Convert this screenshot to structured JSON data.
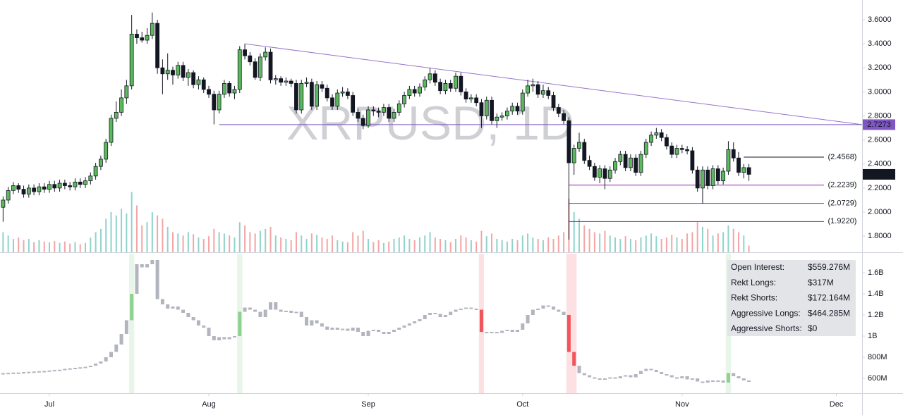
{
  "chart_data": [
    {
      "type": "candlestick",
      "watermark": "XRPUSD, 1D",
      "xlim": [
        -0.6,
        167
      ],
      "ylim": [
        1.666,
        3.764
      ],
      "xticks": [
        {
          "value": 9,
          "label": "Jul"
        },
        {
          "value": 40,
          "label": "Aug"
        },
        {
          "value": 71,
          "label": "Sep"
        },
        {
          "value": 101,
          "label": "Oct"
        },
        {
          "value": 132,
          "label": "Nov"
        },
        {
          "value": 162,
          "label": "Dec"
        }
      ],
      "yticks": [
        {
          "value": 1.8,
          "label": "1.8000"
        },
        {
          "value": 2.0,
          "label": "2.0000"
        },
        {
          "value": 2.2,
          "label": "2.2000"
        },
        {
          "value": 2.4,
          "label": "2.4000"
        },
        {
          "value": 2.6,
          "label": "2.6000"
        },
        {
          "value": 2.8,
          "label": "2.8000"
        },
        {
          "value": 3.0,
          "label": "3.0000"
        },
        {
          "value": 3.2,
          "label": "3.2000"
        },
        {
          "value": 3.4,
          "label": "3.4000"
        },
        {
          "value": 3.6,
          "label": "3.6000"
        }
      ],
      "up_color": "#5cb85c",
      "down_color": "#131722",
      "wick_color": "#131722",
      "volume_up_color": "#8fd3cc",
      "volume_down_color": "#f4a5a5",
      "ohlc": [
        [
          2.04,
          2.13,
          1.92,
          2.1
        ],
        [
          2.1,
          2.21,
          2.07,
          2.18
        ],
        [
          2.18,
          2.25,
          2.15,
          2.22
        ],
        [
          2.22,
          2.24,
          2.16,
          2.19
        ],
        [
          2.19,
          2.22,
          2.12,
          2.15
        ],
        [
          2.15,
          2.23,
          2.12,
          2.2
        ],
        [
          2.2,
          2.23,
          2.14,
          2.17
        ],
        [
          2.17,
          2.24,
          2.14,
          2.21
        ],
        [
          2.21,
          2.24,
          2.16,
          2.19
        ],
        [
          2.19,
          2.26,
          2.16,
          2.23
        ],
        [
          2.23,
          2.26,
          2.17,
          2.2
        ],
        [
          2.2,
          2.27,
          2.17,
          2.24
        ],
        [
          2.24,
          2.27,
          2.19,
          2.22
        ],
        [
          2.22,
          2.25,
          2.18,
          2.21
        ],
        [
          2.21,
          2.28,
          2.18,
          2.25
        ],
        [
          2.25,
          2.28,
          2.2,
          2.23
        ],
        [
          2.23,
          2.29,
          2.2,
          2.26
        ],
        [
          2.26,
          2.33,
          2.23,
          2.3
        ],
        [
          2.3,
          2.41,
          2.27,
          2.38
        ],
        [
          2.38,
          2.47,
          2.35,
          2.44
        ],
        [
          2.44,
          2.61,
          2.41,
          2.58
        ],
        [
          2.58,
          2.81,
          2.55,
          2.78
        ],
        [
          2.78,
          2.92,
          2.75,
          2.83
        ],
        [
          2.83,
          3.02,
          2.8,
          2.95
        ],
        [
          2.95,
          3.1,
          2.9,
          3.05
        ],
        [
          3.05,
          3.64,
          3.02,
          3.48
        ],
        [
          3.48,
          3.52,
          3.4,
          3.45
        ],
        [
          3.45,
          3.5,
          3.41,
          3.43
        ],
        [
          3.43,
          3.53,
          3.4,
          3.47
        ],
        [
          3.47,
          3.66,
          3.44,
          3.57
        ],
        [
          3.57,
          3.6,
          3.15,
          3.2
        ],
        [
          3.2,
          3.27,
          2.98,
          3.15
        ],
        [
          3.15,
          3.32,
          3.1,
          3.18
        ],
        [
          3.18,
          3.21,
          3.06,
          3.14
        ],
        [
          3.14,
          3.25,
          3.11,
          3.22
        ],
        [
          3.22,
          3.25,
          3.09,
          3.12
        ],
        [
          3.12,
          3.19,
          3.05,
          3.16
        ],
        [
          3.16,
          3.18,
          3.03,
          3.06
        ],
        [
          3.06,
          3.13,
          3.02,
          3.1
        ],
        [
          3.1,
          3.12,
          2.99,
          3.02
        ],
        [
          3.02,
          3.05,
          2.95,
          2.98
        ],
        [
          2.98,
          3.01,
          2.73,
          2.85
        ],
        [
          2.85,
          3.01,
          2.82,
          2.98
        ],
        [
          2.98,
          3.1,
          2.95,
          3.07
        ],
        [
          3.07,
          3.09,
          2.96,
          2.99
        ],
        [
          2.99,
          3.05,
          2.94,
          3.02
        ],
        [
          3.02,
          3.38,
          2.99,
          3.35
        ],
        [
          3.35,
          3.4,
          3.27,
          3.3
        ],
        [
          3.3,
          3.33,
          3.22,
          3.25
        ],
        [
          3.25,
          3.28,
          3.1,
          3.12
        ],
        [
          3.12,
          3.32,
          3.09,
          3.29
        ],
        [
          3.29,
          3.37,
          3.26,
          3.33
        ],
        [
          3.33,
          3.36,
          3.07,
          3.1
        ],
        [
          3.1,
          3.14,
          3.06,
          3.11
        ],
        [
          3.11,
          3.13,
          3.05,
          3.08
        ],
        [
          3.08,
          3.12,
          3.05,
          3.09
        ],
        [
          3.09,
          3.11,
          3.04,
          3.07
        ],
        [
          3.07,
          3.1,
          2.82,
          2.85
        ],
        [
          2.85,
          3.1,
          2.82,
          3.07
        ],
        [
          3.07,
          3.12,
          3.04,
          3.08
        ],
        [
          3.08,
          3.11,
          2.85,
          2.88
        ],
        [
          2.88,
          3.09,
          2.85,
          3.06
        ],
        [
          3.06,
          3.09,
          3.0,
          3.03
        ],
        [
          3.03,
          3.06,
          2.92,
          2.95
        ],
        [
          2.95,
          2.98,
          2.85,
          2.88
        ],
        [
          2.88,
          3.02,
          2.85,
          2.99
        ],
        [
          2.99,
          3.04,
          2.96,
          3.0
        ],
        [
          3.0,
          3.03,
          2.94,
          2.97
        ],
        [
          2.97,
          3.0,
          2.8,
          2.83
        ],
        [
          2.83,
          2.86,
          2.75,
          2.78
        ],
        [
          2.78,
          2.81,
          2.69,
          2.72
        ],
        [
          2.72,
          2.88,
          2.7,
          2.85
        ],
        [
          2.85,
          2.88,
          2.8,
          2.84
        ],
        [
          2.84,
          2.87,
          2.79,
          2.83
        ],
        [
          2.83,
          2.9,
          2.8,
          2.87
        ],
        [
          2.87,
          2.9,
          2.75,
          2.78
        ],
        [
          2.78,
          2.86,
          2.75,
          2.83
        ],
        [
          2.83,
          2.93,
          2.8,
          2.9
        ],
        [
          2.9,
          3.0,
          2.87,
          2.97
        ],
        [
          2.97,
          3.05,
          2.94,
          3.02
        ],
        [
          3.02,
          3.05,
          2.96,
          2.99
        ],
        [
          2.99,
          3.07,
          2.96,
          3.04
        ],
        [
          3.04,
          3.13,
          3.01,
          3.1
        ],
        [
          3.1,
          3.2,
          3.07,
          3.15
        ],
        [
          3.15,
          3.18,
          3.05,
          3.08
        ],
        [
          3.08,
          3.11,
          2.98,
          3.01
        ],
        [
          3.01,
          3.1,
          2.98,
          3.07
        ],
        [
          3.07,
          3.1,
          3.0,
          3.03
        ],
        [
          3.03,
          3.16,
          3.0,
          3.13
        ],
        [
          3.13,
          3.16,
          2.97,
          3.0
        ],
        [
          3.0,
          3.03,
          2.91,
          2.94
        ],
        [
          2.94,
          2.98,
          2.91,
          2.95
        ],
        [
          2.95,
          2.98,
          2.88,
          2.91
        ],
        [
          2.91,
          2.94,
          2.7,
          2.8
        ],
        [
          2.8,
          2.96,
          2.77,
          2.93
        ],
        [
          2.93,
          2.96,
          2.73,
          2.76
        ],
        [
          2.76,
          2.82,
          2.7,
          2.79
        ],
        [
          2.79,
          2.83,
          2.76,
          2.8
        ],
        [
          2.8,
          2.87,
          2.77,
          2.84
        ],
        [
          2.84,
          2.91,
          2.81,
          2.88
        ],
        [
          2.88,
          2.91,
          2.81,
          2.84
        ],
        [
          2.84,
          3.02,
          2.81,
          2.99
        ],
        [
          2.99,
          3.1,
          2.96,
          3.05
        ],
        [
          3.05,
          3.11,
          3.0,
          3.06
        ],
        [
          3.06,
          3.09,
          2.95,
          2.98
        ],
        [
          2.98,
          3.06,
          2.95,
          3.01
        ],
        [
          3.01,
          3.04,
          2.94,
          2.97
        ],
        [
          2.97,
          3.0,
          2.84,
          2.87
        ],
        [
          2.87,
          2.9,
          2.79,
          2.82
        ],
        [
          2.82,
          2.85,
          2.73,
          2.76
        ],
        [
          2.76,
          2.79,
          1.77,
          2.41
        ],
        [
          2.41,
          2.56,
          2.31,
          2.53
        ],
        [
          2.53,
          2.66,
          2.5,
          2.58
        ],
        [
          2.58,
          2.61,
          2.4,
          2.43
        ],
        [
          2.43,
          2.47,
          2.35,
          2.38
        ],
        [
          2.38,
          2.41,
          2.26,
          2.29
        ],
        [
          2.29,
          2.39,
          2.24,
          2.36
        ],
        [
          2.36,
          2.39,
          2.19,
          2.28
        ],
        [
          2.28,
          2.38,
          2.25,
          2.35
        ],
        [
          2.35,
          2.45,
          2.32,
          2.42
        ],
        [
          2.42,
          2.51,
          2.39,
          2.48
        ],
        [
          2.48,
          2.51,
          2.34,
          2.37
        ],
        [
          2.37,
          2.48,
          2.34,
          2.45
        ],
        [
          2.45,
          2.48,
          2.3,
          2.33
        ],
        [
          2.33,
          2.51,
          2.3,
          2.48
        ],
        [
          2.48,
          2.61,
          2.45,
          2.58
        ],
        [
          2.58,
          2.67,
          2.55,
          2.64
        ],
        [
          2.64,
          2.7,
          2.61,
          2.66
        ],
        [
          2.66,
          2.69,
          2.59,
          2.62
        ],
        [
          2.62,
          2.65,
          2.52,
          2.55
        ],
        [
          2.55,
          2.58,
          2.45,
          2.48
        ],
        [
          2.48,
          2.56,
          2.45,
          2.53
        ],
        [
          2.53,
          2.56,
          2.49,
          2.52
        ],
        [
          2.52,
          2.55,
          2.48,
          2.51
        ],
        [
          2.51,
          2.54,
          2.32,
          2.35
        ],
        [
          2.35,
          2.38,
          2.17,
          2.2
        ],
        [
          2.2,
          2.38,
          2.07,
          2.35
        ],
        [
          2.35,
          2.38,
          2.19,
          2.22
        ],
        [
          2.22,
          2.39,
          2.19,
          2.36
        ],
        [
          2.36,
          2.39,
          2.23,
          2.26
        ],
        [
          2.26,
          2.37,
          2.23,
          2.34
        ],
        [
          2.34,
          2.59,
          2.31,
          2.52
        ],
        [
          2.52,
          2.58,
          2.42,
          2.45
        ],
        [
          2.45,
          2.5,
          2.3,
          2.33
        ],
        [
          2.33,
          2.4,
          2.28,
          2.37
        ],
        [
          2.37,
          2.4,
          2.26,
          2.3139
        ]
      ],
      "volume": [
        30,
        25,
        20,
        22,
        18,
        20,
        15,
        18,
        16,
        15,
        17,
        14,
        16,
        13,
        15,
        12,
        14,
        22,
        30,
        35,
        50,
        60,
        55,
        65,
        58,
        90,
        70,
        40,
        45,
        60,
        55,
        50,
        38,
        30,
        28,
        25,
        30,
        27,
        22,
        20,
        24,
        35,
        30,
        28,
        25,
        22,
        45,
        40,
        30,
        28,
        32,
        35,
        38,
        25,
        22,
        20,
        18,
        30,
        25,
        20,
        28,
        26,
        22,
        20,
        25,
        18,
        16,
        15,
        30,
        25,
        32,
        20,
        15,
        18,
        14,
        16,
        20,
        22,
        25,
        20,
        18,
        22,
        25,
        30,
        22,
        20,
        18,
        15,
        20,
        25,
        22,
        18,
        16,
        32,
        24,
        28,
        20,
        18,
        16,
        20,
        18,
        25,
        28,
        22,
        20,
        18,
        22,
        20,
        25,
        30,
        80,
        60,
        50,
        40,
        35,
        30,
        28,
        32,
        25,
        22,
        20,
        24,
        20,
        18,
        22,
        25,
        28,
        24,
        20,
        22,
        26,
        22,
        20,
        28,
        30,
        45,
        38,
        35,
        25,
        28,
        30,
        40,
        35,
        30,
        25,
        10
      ],
      "trendline": {
        "start": [
          47,
          3.4
        ],
        "end": [
          167,
          2.7273
        ],
        "color": "#9575cd"
      },
      "support": {
        "start": 42,
        "value": 2.7273,
        "color": "#7e57c2"
      },
      "levels": [
        {
          "value": 2.4568,
          "label": "(2.4568)",
          "start": 144,
          "color": "#131722"
        },
        {
          "value": 2.2239,
          "label": "(2.2239)",
          "start": 110,
          "color": "#9c27b0"
        },
        {
          "value": 2.0729,
          "label": "(2.0729)",
          "start": 110,
          "color": "#9c27b0"
        },
        {
          "value": 1.922,
          "label": "(1.9220)",
          "start": 110,
          "color": "#9c27b0"
        }
      ]
    },
    {
      "type": "open-interest",
      "ylim": [
        460,
        1780
      ],
      "yticks": [
        {
          "value": 600,
          "label": "600M"
        },
        {
          "value": 800,
          "label": "800M"
        },
        {
          "value": 1000,
          "label": "1B"
        },
        {
          "value": 1200,
          "label": "1.2B"
        },
        {
          "value": 1400,
          "label": "1.4B"
        },
        {
          "value": 1600,
          "label": "1.6B"
        }
      ],
      "color": "#b2b5be",
      "green_color": "#8fd18f",
      "red_color": "#f2545b",
      "green_band": "#e8f5e9",
      "red_band": "#fde0e2",
      "green_days": [
        25,
        46,
        141
      ],
      "red_days": [
        93,
        110,
        111
      ],
      "values": [
        650,
        652,
        655,
        655,
        660,
        662,
        665,
        668,
        670,
        675,
        680,
        682,
        690,
        695,
        700,
        705,
        710,
        720,
        740,
        760,
        800,
        850,
        920,
        1020,
        1150,
        1400,
        1680,
        1650,
        1680,
        1720,
        1350,
        1300,
        1260,
        1280,
        1250,
        1220,
        1180,
        1150,
        1100,
        1080,
        1000,
        960,
        990,
        970,
        990,
        1000,
        1230,
        1270,
        1250,
        1230,
        1180,
        1250,
        1320,
        1250,
        1230,
        1240,
        1220,
        1230,
        1180,
        1100,
        1150,
        1120,
        1090,
        1060,
        1080,
        1060,
        1070,
        1050,
        1080,
        1040,
        1000,
        1050,
        1060,
        1040,
        1020,
        1040,
        1060,
        1080,
        1100,
        1120,
        1140,
        1160,
        1200,
        1220,
        1210,
        1180,
        1200,
        1230,
        1250,
        1260,
        1270,
        1260,
        1250,
        1040,
        1030,
        1040,
        1030,
        1050,
        1060,
        1040,
        1060,
        1120,
        1200,
        1250,
        1260,
        1290,
        1280,
        1250,
        1230,
        1200,
        850,
        720,
        650,
        630,
        610,
        600,
        590,
        600,
        610,
        600,
        620,
        630,
        610,
        640,
        670,
        690,
        680,
        660,
        640,
        630,
        610,
        600,
        620,
        590,
        600,
        570,
        560,
        580,
        570,
        580,
        560,
        650,
        620,
        600,
        580,
        570
      ]
    }
  ],
  "info_panel": {
    "rows": [
      [
        "Open Interest:",
        "$559.276M"
      ],
      [
        "Rekt Longs:",
        "$317M"
      ],
      [
        "Rekt Shorts:",
        "$172.164M"
      ],
      [
        "Aggressive Longs:",
        "$464.285M"
      ],
      [
        "Aggressive Shorts:",
        "$0"
      ]
    ]
  }
}
